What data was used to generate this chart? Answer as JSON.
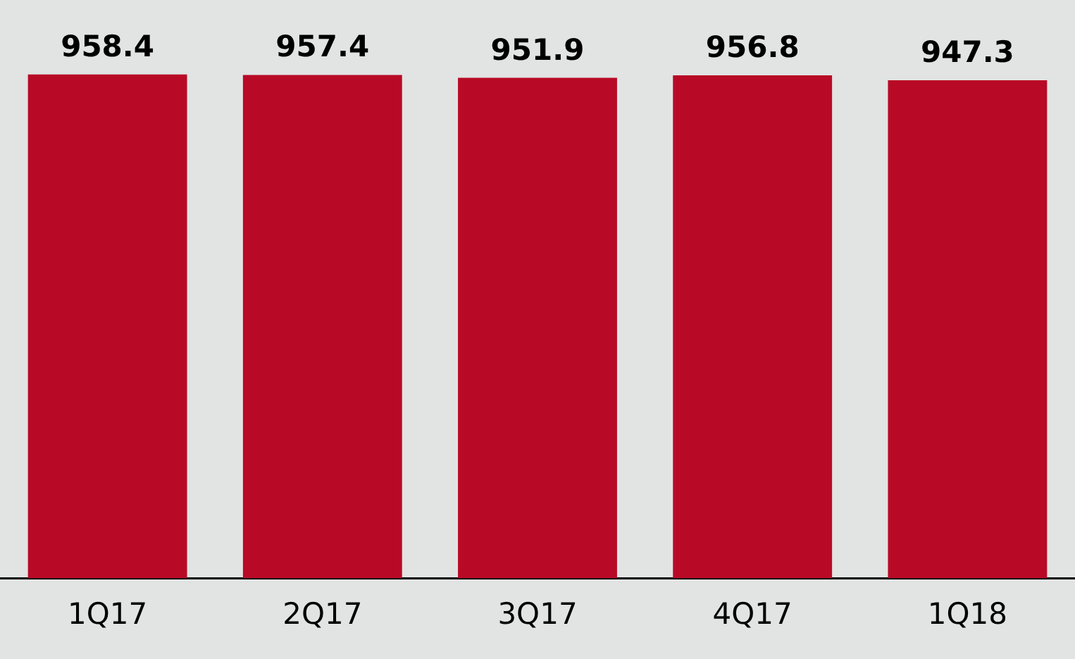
{
  "chart_data": {
    "type": "bar",
    "categories": [
      "1Q17",
      "2Q17",
      "3Q17",
      "4Q17",
      "1Q18"
    ],
    "values": [
      958.4,
      957.4,
      951.9,
      956.8,
      947.3
    ],
    "color": "#b80a26",
    "ylim": [
      0,
      1100
    ],
    "data_labels": true,
    "grid": false,
    "legend": false
  }
}
